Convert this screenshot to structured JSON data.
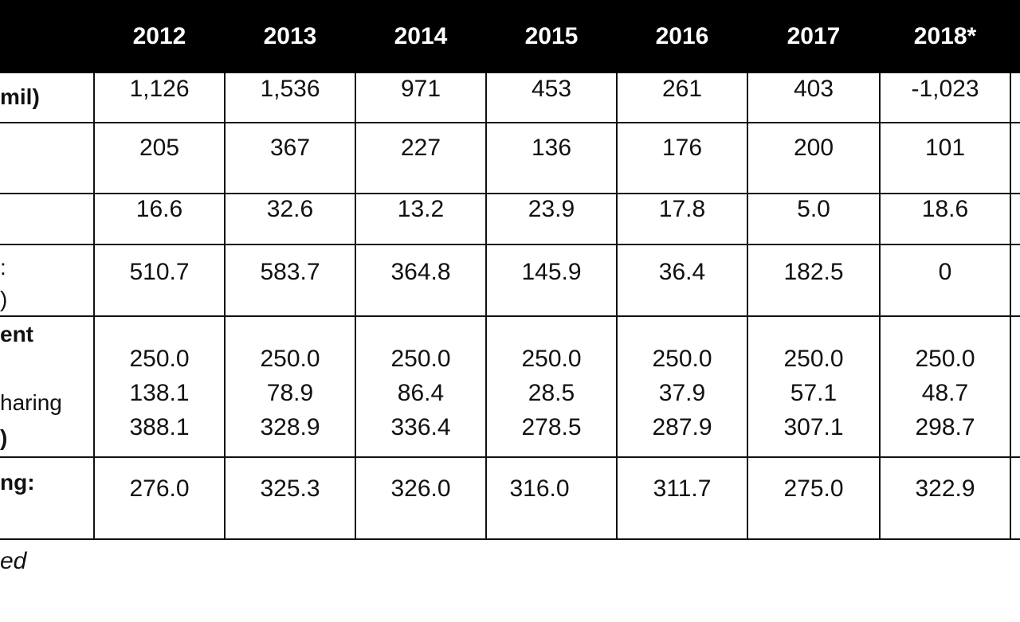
{
  "header": {
    "years": [
      "2012",
      "2013",
      "2014",
      "2015",
      "2016",
      "2017",
      "2018*"
    ]
  },
  "rows": [
    {
      "label_lines": [
        "mil)"
      ],
      "values": [
        "1,126",
        "1,536",
        "971",
        "453",
        "261",
        "403",
        "-1,023"
      ]
    },
    {
      "label_lines": [],
      "values": [
        "205",
        "367",
        "227",
        "136",
        "176",
        "200",
        "101"
      ]
    },
    {
      "label_lines": [],
      "values": [
        "16.6",
        "32.6",
        "13.2",
        "23.9",
        "17.8",
        "5.0",
        "18.6"
      ]
    },
    {
      "label_lines": [
        ":",
        ")"
      ],
      "values": [
        "510.7",
        "583.7",
        "364.8",
        "145.9",
        "36.4",
        "182.5",
        "0"
      ]
    },
    {
      "label_lines": [
        "ent",
        "haring",
        ")"
      ],
      "values_a": [
        "250.0",
        "250.0",
        "250.0",
        "250.0",
        "250.0",
        "250.0",
        "250.0"
      ],
      "values_b": [
        "138.1",
        "78.9",
        "86.4",
        "28.5",
        "37.9",
        "57.1",
        "48.7"
      ],
      "values_c": [
        "388.1",
        "328.9",
        "336.4",
        "278.5",
        "287.9",
        "307.1",
        "298.7"
      ]
    },
    {
      "label_lines": [
        "ng:",
        ""
      ],
      "values": [
        "276.0",
        "325.3",
        "326.0",
        "316.0",
        "311.7",
        "275.0",
        "322.9"
      ]
    }
  ],
  "footnote": "ed"
}
